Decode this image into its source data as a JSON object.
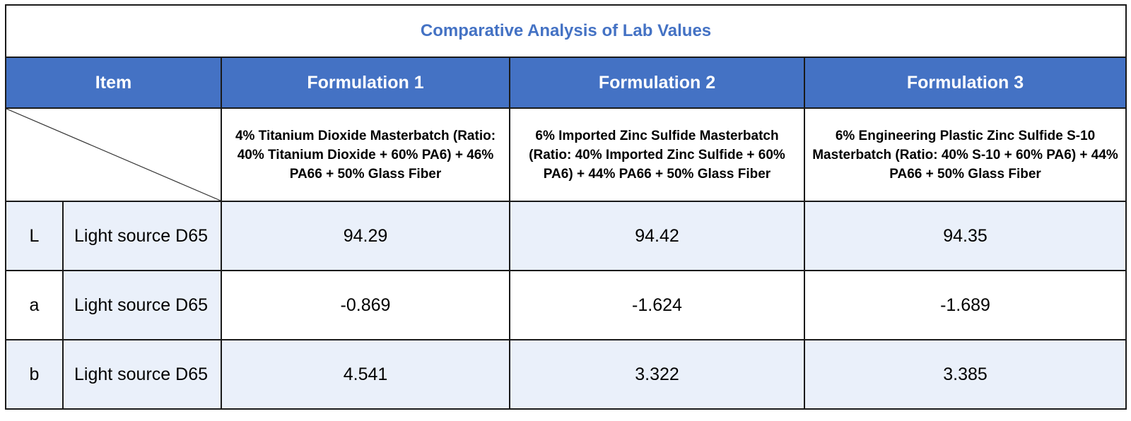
{
  "title": "Comparative Analysis of Lab Values",
  "colors": {
    "accent": "#4472C4",
    "row_shade": "#EAF0FA",
    "border": "#1a1a1a"
  },
  "header": {
    "item": "Item",
    "columns": [
      "Formulation 1",
      "Formulation 2",
      "Formulation 3"
    ]
  },
  "descriptions": [
    "4% Titanium Dioxide Masterbatch (Ratio: 40% Titanium Dioxide + 60% PA6) + 46% PA66 + 50% Glass Fiber",
    "6% Imported Zinc Sulfide Masterbatch (Ratio: 40% Imported Zinc Sulfide + 60% PA6) + 44% PA66 + 50% Glass Fiber",
    "6% Engineering Plastic Zinc Sulfide S-10 Masterbatch (Ratio: 40% S-10 + 60% PA6) + 44% PA66 + 50% Glass Fiber"
  ],
  "rows": [
    {
      "param": "L",
      "source": "Light source D65",
      "values": [
        "94.29",
        "94.42",
        "94.35"
      ]
    },
    {
      "param": "a",
      "source": "Light source D65",
      "values": [
        "-0.869",
        "-1.624",
        "-1.689"
      ]
    },
    {
      "param": "b",
      "source": "Light source D65",
      "values": [
        "4.541",
        "3.322",
        "3.385"
      ]
    }
  ]
}
